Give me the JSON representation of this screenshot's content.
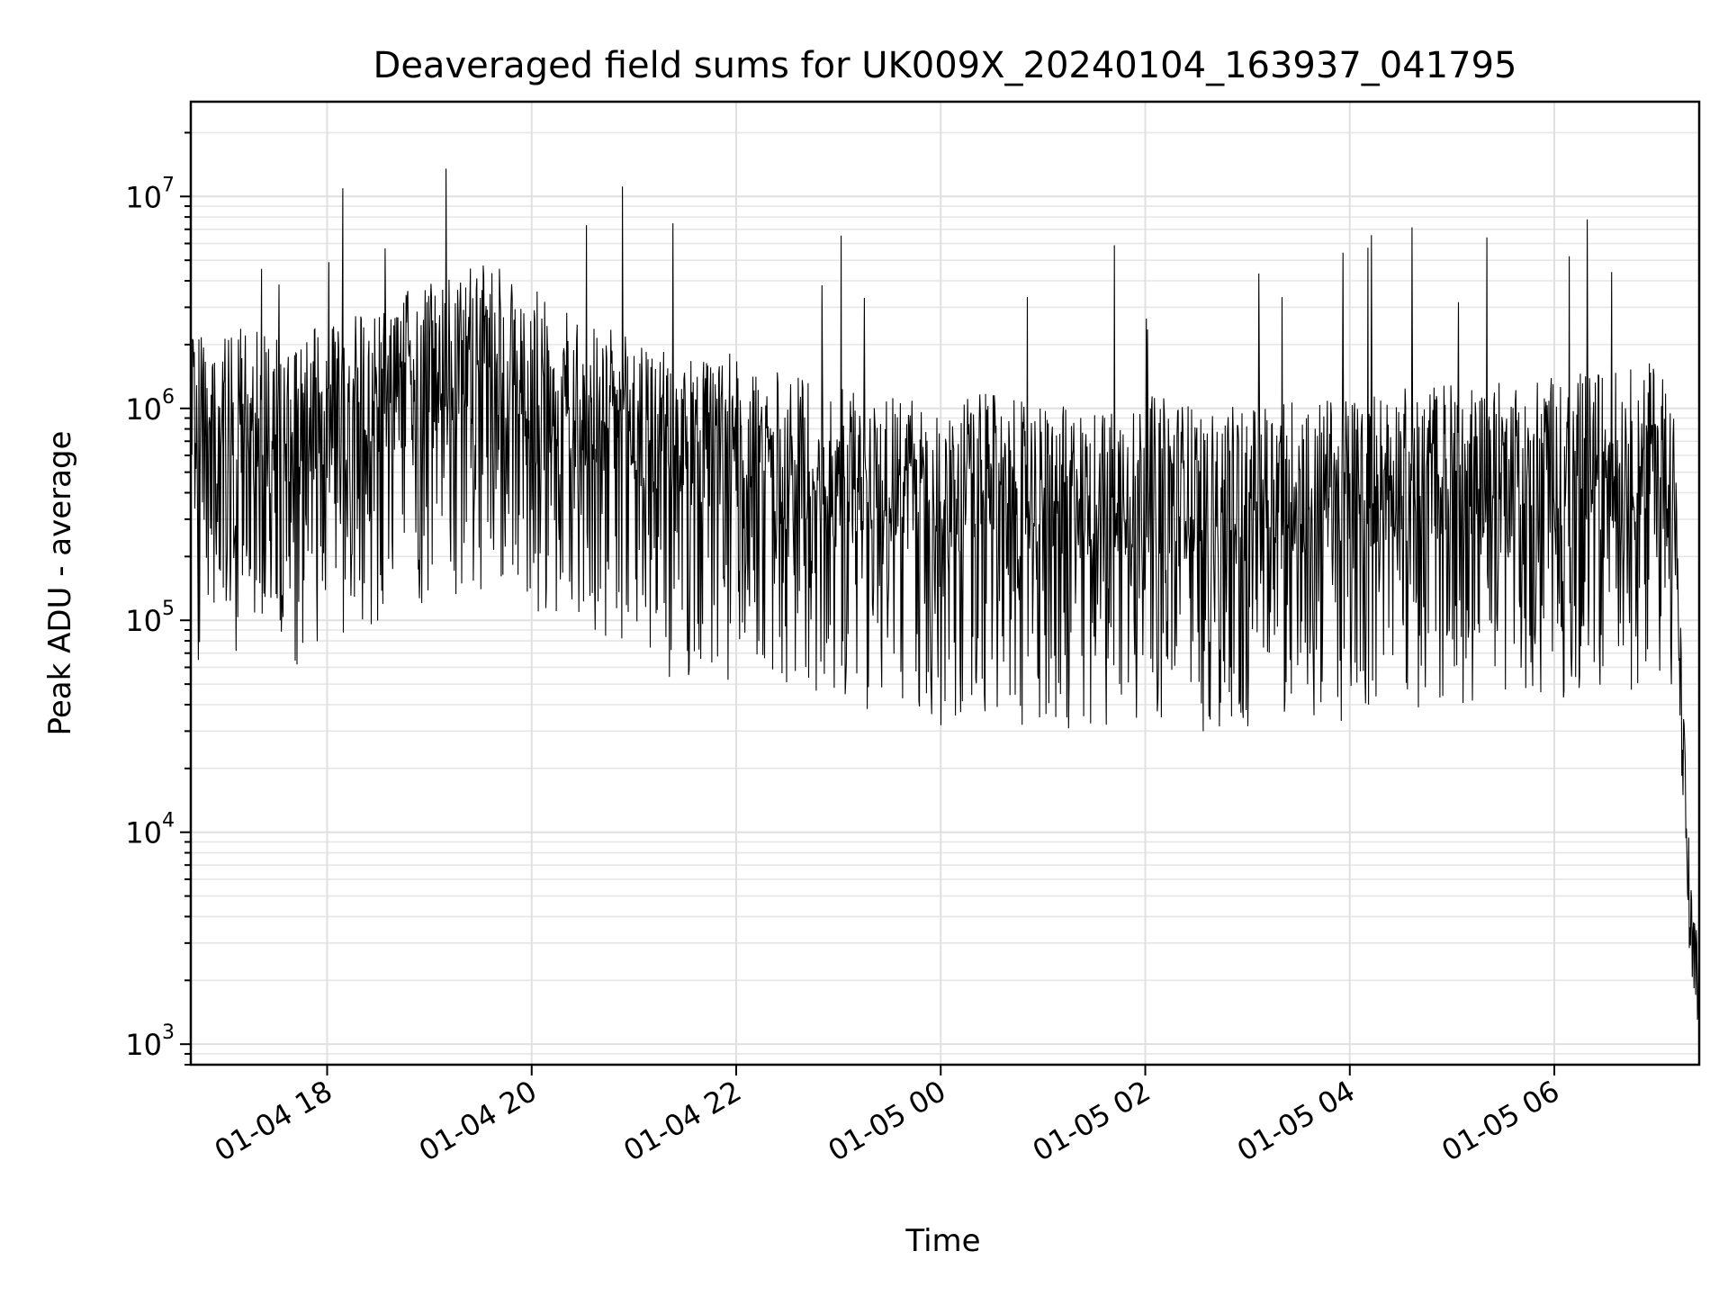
{
  "chart_data": {
    "type": "line",
    "title": "Deaveraged field sums for UK009X_20240104_163937_041795",
    "xlabel": "Time",
    "ylabel": "Peak ADU - average",
    "yscale": "log",
    "xlim": [
      "2024-01-04 16:40",
      "2024-01-05 07:25"
    ],
    "ylim": [
      800,
      28000000
    ],
    "grid": true,
    "line_color": "#000000",
    "x_tick_labels": [
      "01-04 18",
      "01-04 20",
      "01-04 22",
      "01-05 00",
      "01-05 02",
      "01-05 04",
      "01-05 06"
    ],
    "y_tick_labels": [
      {
        "base": "10",
        "exp": "3"
      },
      {
        "base": "10",
        "exp": "4"
      },
      {
        "base": "10",
        "exp": "5"
      },
      {
        "base": "10",
        "exp": "6"
      },
      {
        "base": "10",
        "exp": "7"
      }
    ],
    "series": [
      {
        "x": [
          "2024-01-04 16:40",
          "2024-01-04 17:00",
          "2024-01-04 17:20",
          "2024-01-04 17:40",
          "2024-01-04 18:00",
          "2024-01-04 18:20",
          "2024-01-04 18:40",
          "2024-01-04 19:00",
          "2024-01-04 19:20",
          "2024-01-04 19:40",
          "2024-01-04 20:00",
          "2024-01-04 20:20",
          "2024-01-04 20:40",
          "2024-01-04 21:00",
          "2024-01-04 21:20",
          "2024-01-04 21:40",
          "2024-01-04 22:00",
          "2024-01-04 22:20",
          "2024-01-04 22:40",
          "2024-01-04 23:00",
          "2024-01-04 23:20",
          "2024-01-04 23:40",
          "2024-01-05 00:00",
          "2024-01-05 00:20",
          "2024-01-05 00:40",
          "2024-01-05 01:00",
          "2024-01-05 01:20",
          "2024-01-05 01:40",
          "2024-01-05 02:00",
          "2024-01-05 02:20",
          "2024-01-05 02:40",
          "2024-01-05 03:00",
          "2024-01-05 03:20",
          "2024-01-05 03:40",
          "2024-01-05 04:00",
          "2024-01-05 04:20",
          "2024-01-05 04:40",
          "2024-01-05 05:00",
          "2024-01-05 05:20",
          "2024-01-05 05:40",
          "2024-01-05 06:00",
          "2024-01-05 06:20",
          "2024-01-05 06:40",
          "2024-01-05 07:00",
          "2024-01-05 07:10",
          "2024-01-05 07:15",
          "2024-01-05 07:20",
          "2024-01-05 07:25"
        ],
        "y": [
          700000,
          800000,
          750000,
          650000,
          850000,
          900000,
          1100000,
          1300000,
          1500000,
          1600000,
          1200000,
          1000000,
          800000,
          700000,
          600000,
          550000,
          600000,
          500000,
          450000,
          400000,
          420000,
          380000,
          350000,
          400000,
          360000,
          340000,
          330000,
          350000,
          380000,
          360000,
          320000,
          340000,
          370000,
          360000,
          380000,
          400000,
          420000,
          450000,
          430000,
          450000,
          470000,
          480000,
          500000,
          550000,
          400000,
          30000,
          3000,
          1500
        ]
      }
    ]
  }
}
